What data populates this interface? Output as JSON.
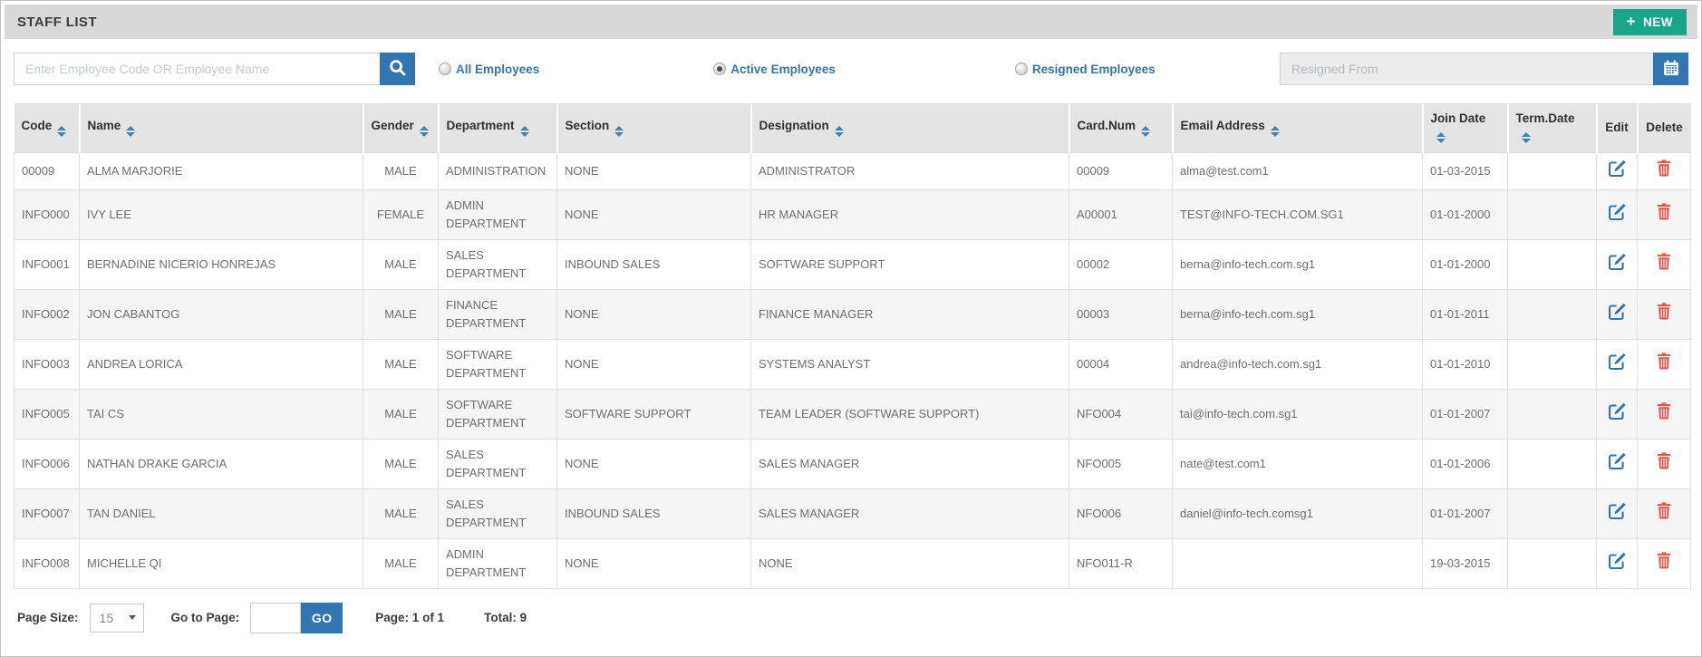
{
  "header": {
    "title": "STAFF LIST",
    "new_button_label": "NEW",
    "plus_icon": "+"
  },
  "toolbar": {
    "search_placeholder": "Enter Employee Code OR Employee Name",
    "search_value": "",
    "filters": [
      {
        "label": "All Employees",
        "selected": false
      },
      {
        "label": "Active Employees",
        "selected": true
      },
      {
        "label": "Resigned Employees",
        "selected": false
      }
    ],
    "resigned_from_placeholder": "Resigned From",
    "resigned_from_value": ""
  },
  "table": {
    "columns": [
      {
        "label": "Code",
        "sortable": true
      },
      {
        "label": "Name",
        "sortable": true
      },
      {
        "label": "Gender",
        "sortable": true
      },
      {
        "label": "Department",
        "sortable": true
      },
      {
        "label": "Section",
        "sortable": true
      },
      {
        "label": "Designation",
        "sortable": true
      },
      {
        "label": "Card.Num",
        "sortable": true
      },
      {
        "label": "Email Address",
        "sortable": true
      },
      {
        "label": "Join Date",
        "sortable": true
      },
      {
        "label": "Term.Date",
        "sortable": true
      },
      {
        "label": "Edit",
        "sortable": false
      },
      {
        "label": "Delete",
        "sortable": false
      }
    ],
    "rows": [
      {
        "code": "00009",
        "name": "ALMA MARJORIE",
        "gender": "MALE",
        "department": "ADMINISTRATION",
        "section": "NONE",
        "designation": "ADMINISTRATOR",
        "card_num": "00009",
        "email": "alma@test.com1",
        "join_date": "01-03-2015",
        "term_date": ""
      },
      {
        "code": "INFO000",
        "name": "IVY LEE",
        "gender": "FEMALE",
        "department": "ADMIN DEPARTMENT",
        "section": "NONE",
        "designation": "HR MANAGER",
        "card_num": "A00001",
        "email": "TEST@INFO-TECH.COM.SG1",
        "join_date": "01-01-2000",
        "term_date": ""
      },
      {
        "code": "INFO001",
        "name": "BERNADINE NICERIO HONREJAS",
        "gender": "MALE",
        "department": "SALES DEPARTMENT",
        "section": "INBOUND SALES",
        "designation": "SOFTWARE SUPPORT",
        "card_num": "00002",
        "email": "berna@info-tech.com.sg1",
        "join_date": "01-01-2000",
        "term_date": ""
      },
      {
        "code": "INFO002",
        "name": "JON CABANTOG",
        "gender": "MALE",
        "department": "FINANCE DEPARTMENT",
        "section": "NONE",
        "designation": "FINANCE MANAGER",
        "card_num": "00003",
        "email": "berna@info-tech.com.sg1",
        "join_date": "01-01-2011",
        "term_date": ""
      },
      {
        "code": "INFO003",
        "name": "ANDREA LORICA",
        "gender": "MALE",
        "department": "SOFTWARE DEPARTMENT",
        "section": "NONE",
        "designation": "SYSTEMS ANALYST",
        "card_num": "00004",
        "email": "andrea@info-tech.com.sg1",
        "join_date": "01-01-2010",
        "term_date": ""
      },
      {
        "code": "INFO005",
        "name": "TAI CS",
        "gender": "MALE",
        "department": "SOFTWARE DEPARTMENT",
        "section": "SOFTWARE SUPPORT",
        "designation": "TEAM LEADER (SOFTWARE SUPPORT)",
        "card_num": "NFO004",
        "email": "tai@info-tech.com.sg1",
        "join_date": "01-01-2007",
        "term_date": ""
      },
      {
        "code": "INFO006",
        "name": "NATHAN DRAKE GARCIA",
        "gender": "MALE",
        "department": "SALES DEPARTMENT",
        "section": "NONE",
        "designation": "SALES MANAGER",
        "card_num": "NFO005",
        "email": "nate@test.com1",
        "join_date": "01-01-2006",
        "term_date": ""
      },
      {
        "code": "INFO007",
        "name": "TAN DANIEL",
        "gender": "MALE",
        "department": "SALES DEPARTMENT",
        "section": "INBOUND SALES",
        "designation": "SALES MANAGER",
        "card_num": "NFO006",
        "email": "daniel@info-tech.comsg1",
        "join_date": "01-01-2007",
        "term_date": ""
      },
      {
        "code": "INFO008",
        "name": "MICHELLE QI",
        "gender": "MALE",
        "department": "ADMIN DEPARTMENT",
        "section": "NONE",
        "designation": "NONE",
        "card_num": "NFO011-R",
        "email": "",
        "join_date": "19-03-2015",
        "term_date": ""
      }
    ]
  },
  "footer": {
    "page_size_label": "Page Size:",
    "page_size_value": "15",
    "goto_label": "Go to Page:",
    "goto_value": "",
    "go_button_label": "GO",
    "page_info": "Page: 1 of 1",
    "total_info": "Total: 9"
  },
  "colors": {
    "accent_blue": "#3276b1",
    "accent_green": "#17a689",
    "accent_red": "#e9534a",
    "title_bar_bg": "#d9d9d9",
    "table_header_bg": "#e4e4e4",
    "row_alt_bg": "#f5f5f5"
  }
}
